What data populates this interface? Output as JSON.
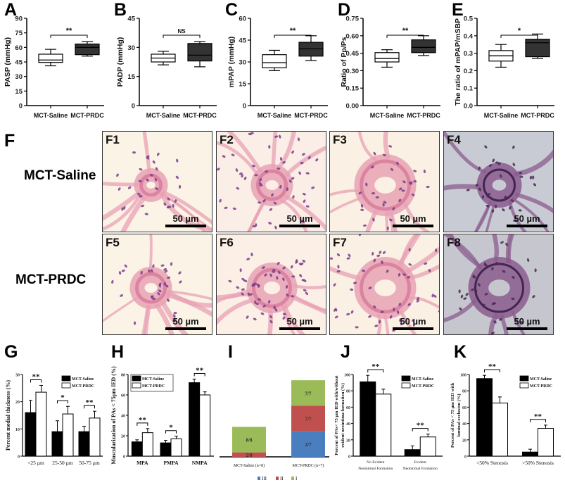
{
  "figure": {
    "panel_letters": [
      "A",
      "B",
      "C",
      "D",
      "E",
      "F",
      "G",
      "H",
      "I",
      "J",
      "K"
    ]
  },
  "micrographs": {
    "row_labels": [
      "MCT-Saline",
      "MCT-PRDC"
    ],
    "panels": [
      {
        "id": "F1",
        "scale": "50 µm",
        "stain": "HE",
        "bg": "#fbf3e6"
      },
      {
        "id": "F2",
        "scale": "50 µm",
        "stain": "HE",
        "bg": "#fbeee6"
      },
      {
        "id": "F3",
        "scale": "50 µm",
        "stain": "HE",
        "bg": "#fbf0e4"
      },
      {
        "id": "F4",
        "scale": "50 µm",
        "stain": "EVG",
        "bg": "#c9cbd4"
      },
      {
        "id": "F5",
        "scale": "50 µm",
        "stain": "HE",
        "bg": "#fbf3e6"
      },
      {
        "id": "F6",
        "scale": "50 µm",
        "stain": "HE",
        "bg": "#fbefe6"
      },
      {
        "id": "F7",
        "scale": "50 µm",
        "stain": "HE",
        "bg": "#fbf0e4"
      },
      {
        "id": "F8",
        "scale": "50 µm",
        "stain": "EVG",
        "bg": "#c6c6ce"
      }
    ]
  },
  "chart_data": [
    {
      "panel": "A",
      "type": "box",
      "ylabel": "PASP (mmHg)",
      "ylim": [
        0,
        90
      ],
      "yticks": [
        0,
        15,
        30,
        45,
        60,
        75,
        90
      ],
      "categories": [
        "MCT-Saline",
        "MCT-PRDC"
      ],
      "boxes": [
        {
          "min": 41,
          "q1": 44.5,
          "median": 47,
          "q3": 53,
          "max": 58,
          "fill": "#ffffff"
        },
        {
          "min": 51,
          "q1": 52.5,
          "median": 60,
          "q3": 63.5,
          "max": 66,
          "fill": "#333333"
        }
      ],
      "significance": "**"
    },
    {
      "panel": "B",
      "type": "box",
      "ylabel": "PADP (mmHg)",
      "ylim": [
        0,
        45
      ],
      "yticks": [
        0,
        15,
        30,
        45
      ],
      "categories": [
        "MCT-Saline",
        "MCT-PRDC"
      ],
      "boxes": [
        {
          "min": 21,
          "q1": 22.5,
          "median": 24.5,
          "q3": 26.5,
          "max": 28,
          "fill": "#ffffff"
        },
        {
          "min": 20,
          "q1": 23,
          "median": 26,
          "q3": 32,
          "max": 33,
          "fill": "#333333"
        }
      ],
      "significance": "NS"
    },
    {
      "panel": "C",
      "type": "box",
      "ylabel": "mPAP (mmHg)",
      "ylim": [
        0,
        60
      ],
      "yticks": [
        0,
        15,
        30,
        45,
        60
      ],
      "categories": [
        "MCT-Saline",
        "MCT-PRDC"
      ],
      "boxes": [
        {
          "min": 24,
          "q1": 26,
          "median": 29.5,
          "q3": 35,
          "max": 38,
          "fill": "#ffffff"
        },
        {
          "min": 31,
          "q1": 34,
          "median": 39,
          "q3": 43.5,
          "max": 48,
          "fill": "#333333"
        }
      ],
      "significance": "**"
    },
    {
      "panel": "D",
      "type": "box",
      "ylabel": "Ratio of Pp/Ps",
      "ylim": [
        0,
        0.75
      ],
      "yticks": [
        "0.00",
        "0.15",
        "0.30",
        "0.45",
        "0.60",
        "0.75"
      ],
      "categories": [
        "MCT-Saline",
        "MCT-PRDC"
      ],
      "boxes": [
        {
          "min": 0.33,
          "q1": 0.375,
          "median": 0.405,
          "q3": 0.455,
          "max": 0.48,
          "fill": "#ffffff"
        },
        {
          "min": 0.43,
          "q1": 0.455,
          "median": 0.5,
          "q3": 0.565,
          "max": 0.6,
          "fill": "#333333"
        }
      ],
      "significance": "**"
    },
    {
      "panel": "E",
      "type": "box",
      "ylabel": "The ratio of mPAP/mSBP",
      "ylim": [
        0,
        0.5
      ],
      "yticks": [
        "0.0",
        "0.1",
        "0.2",
        "0.3",
        "0.4",
        "0.5"
      ],
      "categories": [
        "MCT-Saline",
        "MCT-PRDC"
      ],
      "boxes": [
        {
          "min": 0.22,
          "q1": 0.255,
          "median": 0.285,
          "q3": 0.315,
          "max": 0.35,
          "fill": "#ffffff"
        },
        {
          "min": 0.27,
          "q1": 0.28,
          "median": 0.36,
          "q3": 0.38,
          "max": 0.41,
          "fill": "#333333"
        }
      ],
      "significance": "*"
    },
    {
      "panel": "G",
      "type": "bar",
      "ylabel": "Percent medial thickness (%)",
      "ylim": [
        0,
        30
      ],
      "yticks": [
        0,
        10,
        20,
        30
      ],
      "categories": [
        "<25 µm",
        "25-50 µm",
        "50-75 µm"
      ],
      "series": [
        {
          "name": "MCT-Saline",
          "color": "#000000",
          "values": [
            16,
            9,
            9
          ],
          "errors": [
            4.5,
            4,
            2
          ]
        },
        {
          "name": "MCT-PRDC",
          "color": "#ffffff",
          "values": [
            23.5,
            15.5,
            14
          ],
          "errors": [
            2.5,
            2.8,
            2.5
          ]
        }
      ],
      "significance": [
        "**",
        "*",
        "**"
      ],
      "legend": "top-right"
    },
    {
      "panel": "H",
      "type": "bar",
      "ylabel": "Muscularization of PAs < 75µm IED (%)",
      "ylim": [
        0,
        80
      ],
      "yticks": [
        0,
        20,
        40,
        60,
        80
      ],
      "categories": [
        "MPA",
        "PMPA",
        "NMPA"
      ],
      "series": [
        {
          "name": "MCT-Saline",
          "color": "#000000",
          "values": [
            14,
            13,
            72
          ],
          "errors": [
            2,
            2.5,
            3.5
          ]
        },
        {
          "name": "MCT-PRDC",
          "color": "#ffffff",
          "values": [
            23,
            17,
            60
          ],
          "errors": [
            4,
            2.5,
            3
          ]
        }
      ],
      "significance": [
        "**",
        "*",
        "**"
      ],
      "legend": "top-left"
    },
    {
      "panel": "I",
      "type": "stacked-bar",
      "ylim": [
        0,
        7
      ],
      "categories": [
        "MCT-Saline (n=8)",
        "MCT-PRDC (n=7)"
      ],
      "series": [
        {
          "name": "III",
          "color": "#4a7ebf",
          "values": [
            0,
            2.0
          ],
          "labels": [
            "",
            "2/7"
          ]
        },
        {
          "name": "II",
          "color": "#c0504d",
          "values": [
            0.35,
            2.0
          ],
          "labels": [
            "2/8",
            "7/7"
          ]
        },
        {
          "name": "I",
          "color": "#9bbb59",
          "values": [
            2.0,
            2.0
          ],
          "labels": [
            "8/8",
            "7/7"
          ]
        }
      ],
      "legend": "bottom"
    },
    {
      "panel": "J",
      "type": "bar",
      "ylabel": "Percent of PAs< 75 µm IED with/without evident neointima formation (%)",
      "ylim": [
        0,
        100
      ],
      "yticks": [
        0,
        20,
        40,
        60,
        80,
        100
      ],
      "categories": [
        "No Evident Neointimal Formation",
        "Evident Neointimal Formation"
      ],
      "series": [
        {
          "name": "MCT-Saline",
          "color": "#000000",
          "values": [
            91,
            8
          ],
          "errors": [
            8,
            4.5
          ]
        },
        {
          "name": "MCT-PRDC",
          "color": "#ffffff",
          "values": [
            76,
            23.5
          ],
          "errors": [
            6,
            3.5
          ]
        }
      ],
      "significance": [
        "**",
        "**"
      ],
      "legend": "top-right"
    },
    {
      "panel": "K",
      "type": "bar",
      "ylabel": "Percent of PAs < 75 µm IED with luminal occlusion (%)",
      "ylim": [
        0,
        100
      ],
      "yticks": [
        0,
        20,
        40,
        60,
        80,
        100
      ],
      "categories": [
        "<50% Stenosis",
        ">50% Stenosis"
      ],
      "series": [
        {
          "name": "MCT-Saline",
          "color": "#000000",
          "values": [
            95,
            5
          ],
          "errors": [
            4,
            3.5
          ]
        },
        {
          "name": "MCT-PRDC",
          "color": "#ffffff",
          "values": [
            65,
            34
          ],
          "errors": [
            7.5,
            4
          ]
        }
      ],
      "significance": [
        "**",
        "**"
      ],
      "legend": "top-right"
    }
  ]
}
